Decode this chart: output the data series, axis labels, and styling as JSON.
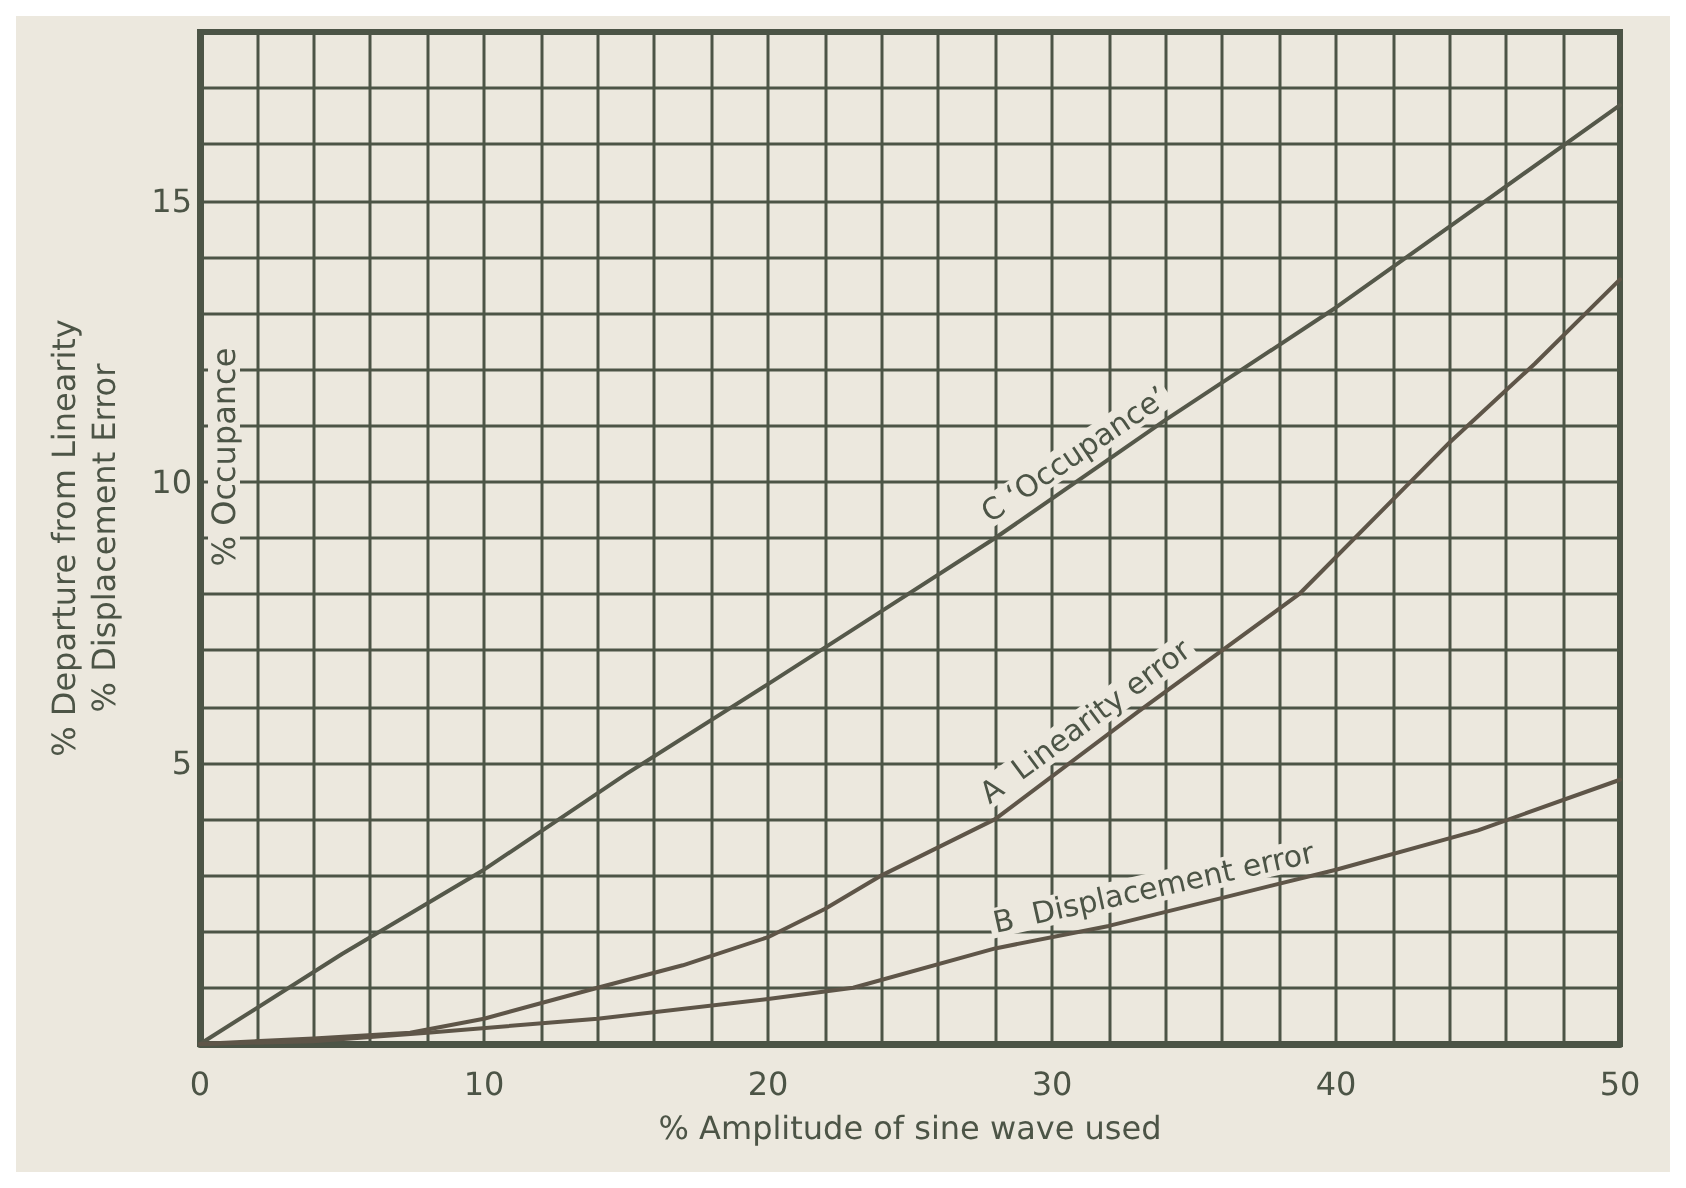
{
  "chart_data": {
    "type": "line",
    "xlabel": "% Amplitude of sine wave used",
    "ylabel": "% Departure from Linearity\n% Displacement Error",
    "annotations": [
      "% Occupance"
    ],
    "xlim": [
      0,
      50
    ],
    "ylim": [
      0,
      18
    ],
    "xticks": [
      0,
      {
        "value": 2,
        "label": null
      },
      {
        "value": 4,
        "label": null
      },
      {
        "value": 6,
        "label": null
      },
      {
        "value": 8,
        "label": null
      },
      10,
      {
        "value": 12,
        "label": null
      },
      {
        "value": 14,
        "label": null
      },
      {
        "value": 16,
        "label": null
      },
      {
        "value": 18,
        "label": null
      },
      20,
      {
        "value": 22,
        "label": null
      },
      {
        "value": 24,
        "label": null
      },
      {
        "value": 26,
        "label": null
      },
      {
        "value": 28,
        "label": null
      },
      30,
      {
        "value": 32,
        "label": null
      },
      {
        "value": 34,
        "label": null
      },
      {
        "value": 36,
        "label": null
      },
      {
        "value": 38,
        "label": null
      },
      40,
      {
        "value": 42,
        "label": null
      },
      {
        "value": 44,
        "label": null
      },
      {
        "value": 46,
        "label": null
      },
      {
        "value": 48,
        "label": null
      },
      50
    ],
    "yticks": [
      {
        "value": 0,
        "label": null
      },
      {
        "value": 1,
        "label": null
      },
      {
        "value": 2,
        "label": null
      },
      {
        "value": 3,
        "label": null
      },
      {
        "value": 4,
        "label": null
      },
      5,
      {
        "value": 6,
        "label": null
      },
      {
        "value": 7,
        "label": null
      },
      {
        "value": 8,
        "label": null
      },
      {
        "value": 9,
        "label": null
      },
      10,
      {
        "value": 11,
        "label": null
      },
      {
        "value": 12,
        "label": null
      },
      {
        "value": 13,
        "label": null
      },
      {
        "value": 14,
        "label": null
      },
      15,
      {
        "value": 16,
        "label": null
      },
      {
        "value": 17,
        "label": null
      },
      {
        "value": 18,
        "label": null
      }
    ],
    "grid": true,
    "legend": false,
    "marker": "none",
    "line_style": "solid",
    "series": [
      {
        "name": "C ‘Occupance’",
        "color": "#55584a",
        "x": [
          0,
          5,
          10,
          15,
          20,
          24,
          28,
          34,
          40,
          45,
          50
        ],
        "values": [
          0,
          1.6,
          3.1,
          4.8,
          6.4,
          7.7,
          9.0,
          11.1,
          13.1,
          14.9,
          16.7
        ]
      },
      {
        "name": "A  Linearity error",
        "color": "#5e5548",
        "x": [
          0,
          4,
          7.4,
          10,
          14,
          17,
          20,
          22,
          24,
          28,
          33,
          38.7,
          44,
          47,
          50
        ],
        "values": [
          0,
          0.1,
          0.2,
          0.45,
          1.0,
          1.4,
          1.9,
          2.4,
          3.0,
          4.0,
          5.9,
          8.0,
          10.7,
          12.1,
          13.6
        ]
      },
      {
        "name": "B  Displacement error",
        "color": "#5e5548",
        "x": [
          0,
          4,
          8,
          14,
          20,
          23,
          28,
          32,
          36,
          40,
          45,
          50
        ],
        "values": [
          0,
          0.05,
          0.2,
          0.45,
          0.8,
          1.0,
          1.7,
          2.1,
          2.6,
          3.1,
          3.8,
          4.7
        ]
      }
    ]
  }
}
